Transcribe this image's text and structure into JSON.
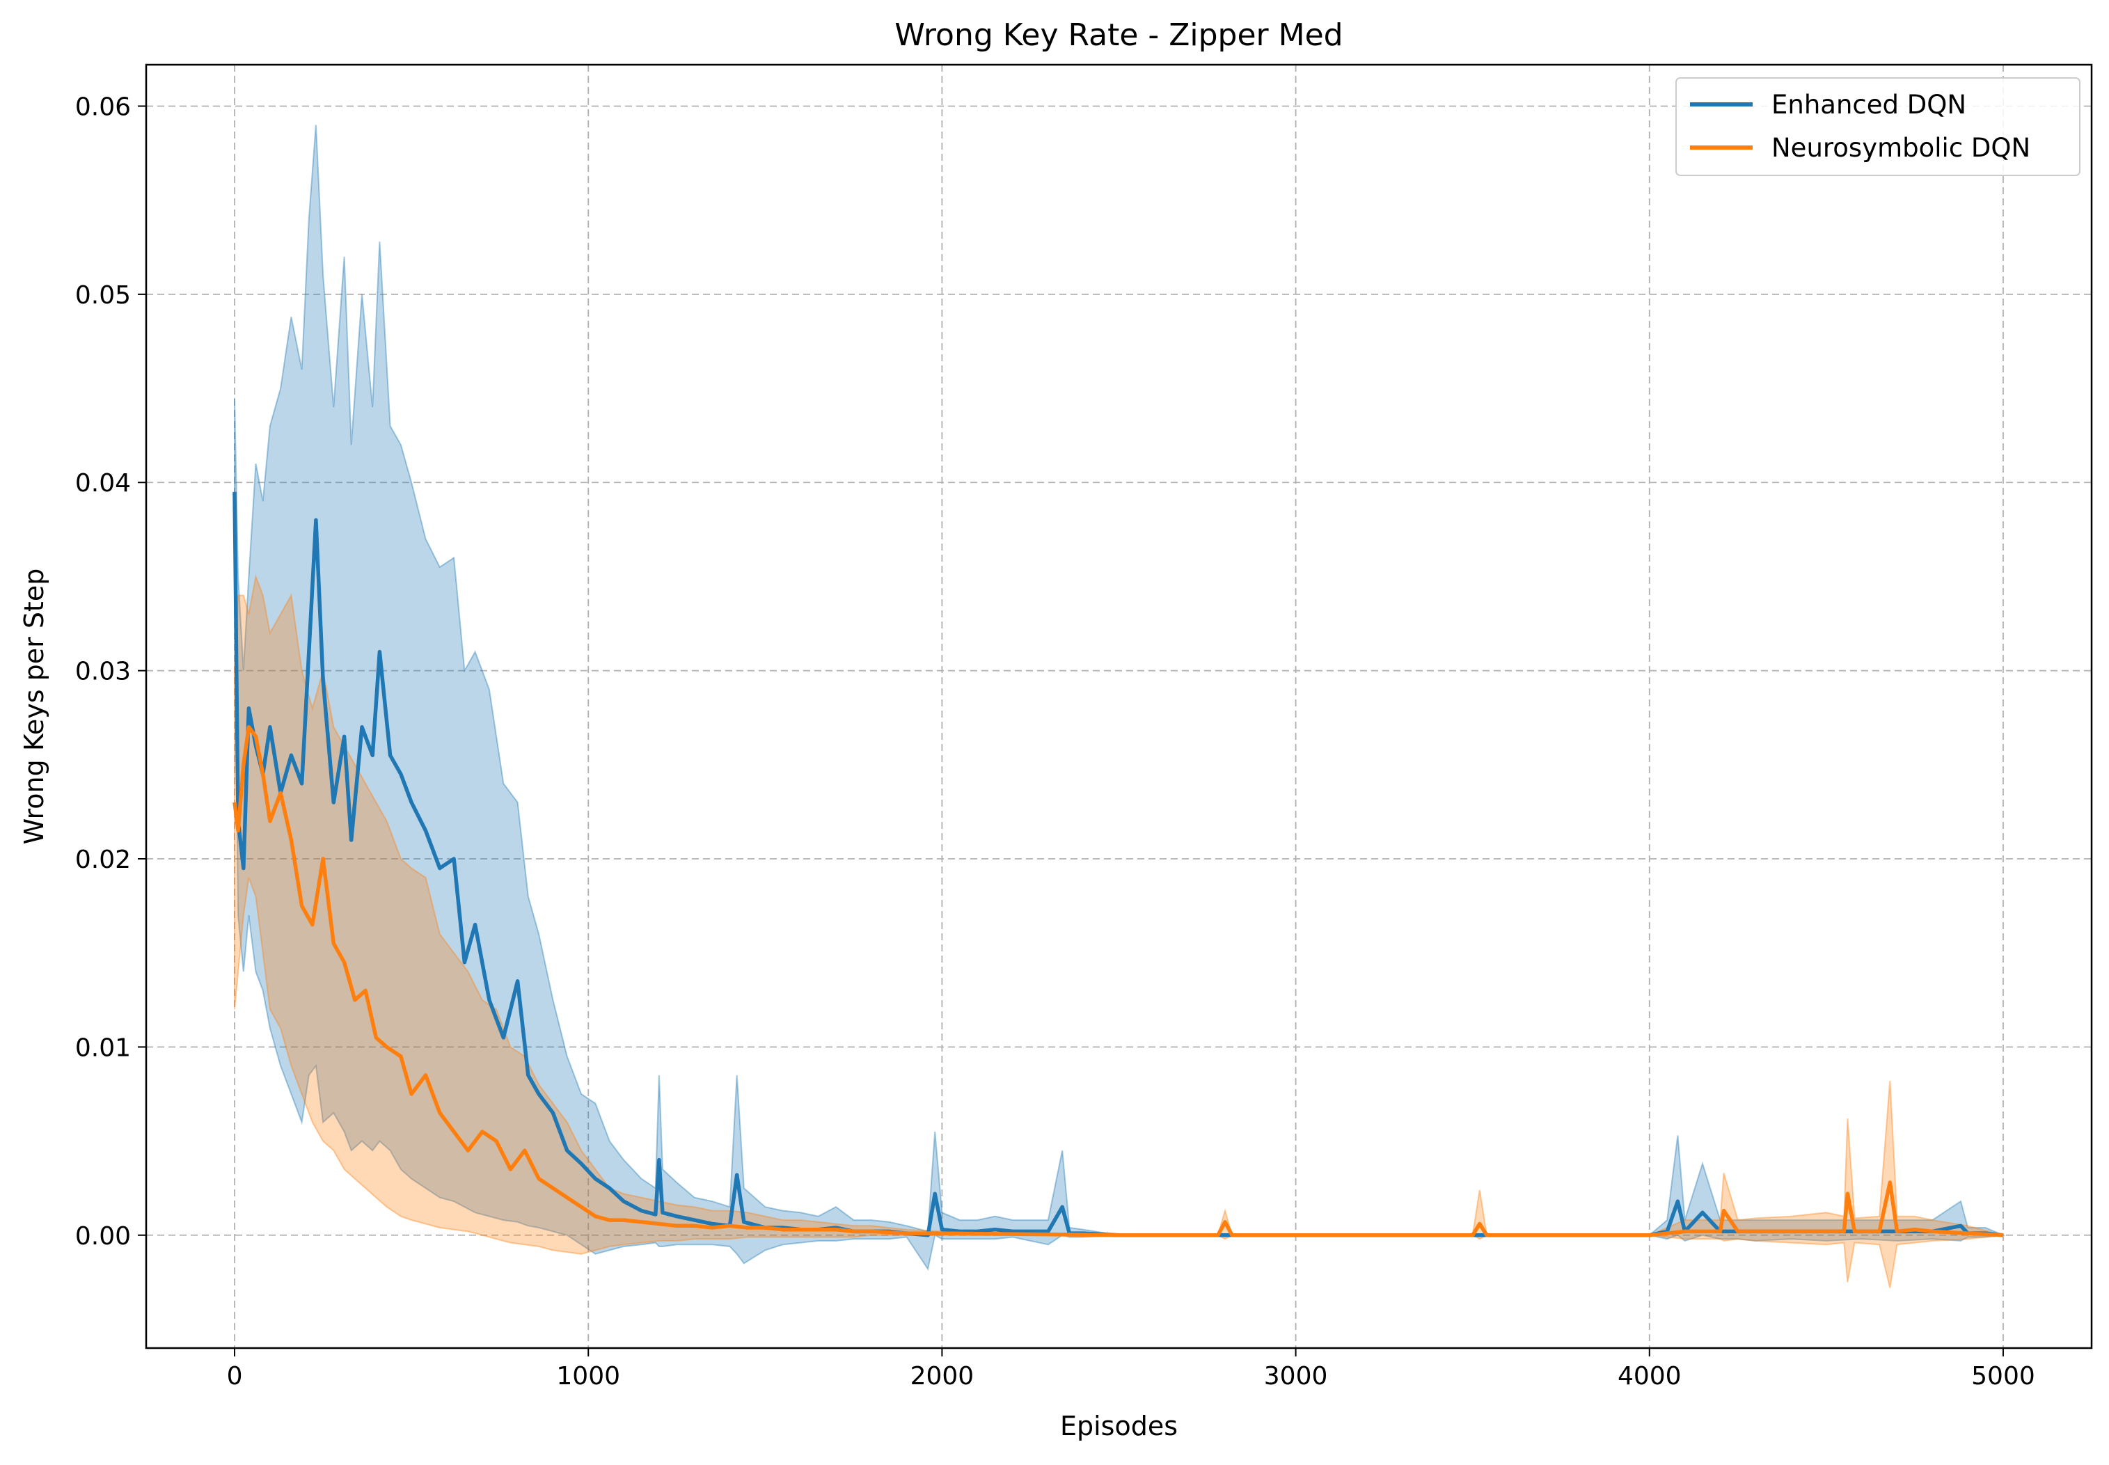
{
  "chart_data": {
    "type": "line",
    "title": "Wrong Key Rate - Zipper Med",
    "xlabel": "Episodes",
    "ylabel": "Wrong Keys per Step",
    "xlim": [
      -250,
      5250
    ],
    "ylim": [
      -0.006,
      0.0622
    ],
    "xticks": [
      0,
      1000,
      2000,
      3000,
      4000,
      5000
    ],
    "xtick_labels": [
      "0",
      "1000",
      "2000",
      "3000",
      "4000",
      "5000"
    ],
    "yticks": [
      0.0,
      0.01,
      0.02,
      0.03,
      0.04,
      0.05,
      0.06
    ],
    "ytick_labels": [
      "0.00",
      "0.01",
      "0.02",
      "0.03",
      "0.04",
      "0.05",
      "0.06"
    ],
    "grid": true,
    "legend_position": "top-right",
    "series": [
      {
        "name": "Enhanced DQN",
        "color": "#1f77b4",
        "x": [
          0,
          10,
          25,
          40,
          60,
          80,
          100,
          130,
          160,
          190,
          210,
          230,
          250,
          280,
          310,
          330,
          360,
          390,
          410,
          440,
          470,
          500,
          540,
          580,
          620,
          650,
          680,
          720,
          760,
          800,
          830,
          860,
          900,
          940,
          980,
          1020,
          1060,
          1100,
          1150,
          1190,
          1200,
          1210,
          1250,
          1300,
          1350,
          1400,
          1420,
          1440,
          1500,
          1550,
          1600,
          1650,
          1700,
          1750,
          1800,
          1850,
          1900,
          1960,
          1980,
          2000,
          2050,
          2100,
          2150,
          2200,
          2300,
          2340,
          2360,
          2400,
          2500,
          3000,
          3500,
          4000,
          4050,
          4080,
          4100,
          4150,
          4200,
          4250,
          4300,
          4400,
          4500,
          4600,
          4700,
          4800,
          4880,
          4900,
          4950,
          5000
        ],
        "mean": [
          0.0395,
          0.022,
          0.0195,
          0.028,
          0.026,
          0.0245,
          0.027,
          0.0235,
          0.0255,
          0.024,
          0.031,
          0.038,
          0.0295,
          0.023,
          0.0265,
          0.021,
          0.027,
          0.0255,
          0.031,
          0.0255,
          0.0245,
          0.023,
          0.0215,
          0.0195,
          0.02,
          0.0145,
          0.0165,
          0.0125,
          0.0105,
          0.0135,
          0.0085,
          0.0075,
          0.0065,
          0.0045,
          0.0038,
          0.003,
          0.0025,
          0.0018,
          0.0013,
          0.0011,
          0.004,
          0.0012,
          0.001,
          0.0008,
          0.0006,
          0.0005,
          0.0032,
          0.0007,
          0.0004,
          0.0004,
          0.0003,
          0.0003,
          0.0004,
          0.0002,
          0.0002,
          0.0002,
          0.0001,
          0.0,
          0.0022,
          0.0003,
          0.0002,
          0.0002,
          0.0003,
          0.0002,
          0.0002,
          0.0015,
          0.0001,
          0.0001,
          0.0,
          0.0,
          0.0,
          0.0,
          0.0002,
          0.0018,
          0.0002,
          0.0012,
          0.0002,
          0.0002,
          0.0002,
          0.0002,
          0.0002,
          0.0002,
          0.0002,
          0.0002,
          0.0005,
          0.0001,
          0.0001,
          0.0
        ],
        "lower": [
          0.035,
          0.017,
          0.014,
          0.017,
          0.014,
          0.013,
          0.011,
          0.009,
          0.0075,
          0.006,
          0.0085,
          0.009,
          0.006,
          0.0065,
          0.0055,
          0.0045,
          0.005,
          0.0045,
          0.005,
          0.0045,
          0.0035,
          0.003,
          0.0025,
          0.002,
          0.0018,
          0.0015,
          0.0012,
          0.001,
          0.0008,
          0.0007,
          0.0005,
          0.0004,
          0.0002,
          0.0,
          -0.0005,
          -0.001,
          -0.0008,
          -0.0006,
          -0.0005,
          -0.0004,
          -0.0006,
          -0.0006,
          -0.0005,
          -0.0005,
          -0.0005,
          -0.0006,
          -0.001,
          -0.0015,
          -0.0008,
          -0.0005,
          -0.0004,
          -0.0003,
          -0.0003,
          -0.0002,
          -0.0002,
          -0.0002,
          -0.0001,
          -0.0018,
          0.0,
          -0.0002,
          -0.0002,
          -0.0002,
          -0.0002,
          -0.0001,
          -0.0005,
          0.0,
          -0.0001,
          -0.0001,
          0.0,
          0.0,
          0.0,
          0.0,
          -0.0002,
          0.0,
          -0.0003,
          0.0,
          -0.0002,
          -0.0002,
          -0.0003,
          -0.0002,
          -0.0003,
          -0.0002,
          -0.0003,
          -0.0002,
          -0.0003,
          -0.0001,
          -0.0001,
          0.0
        ],
        "upper": [
          0.0445,
          0.035,
          0.03,
          0.035,
          0.041,
          0.039,
          0.043,
          0.045,
          0.0488,
          0.046,
          0.054,
          0.059,
          0.051,
          0.044,
          0.052,
          0.042,
          0.05,
          0.044,
          0.0528,
          0.043,
          0.042,
          0.04,
          0.037,
          0.0355,
          0.036,
          0.03,
          0.031,
          0.029,
          0.024,
          0.023,
          0.018,
          0.016,
          0.0125,
          0.0095,
          0.0075,
          0.007,
          0.005,
          0.004,
          0.003,
          0.0025,
          0.0085,
          0.0035,
          0.0028,
          0.002,
          0.0018,
          0.0015,
          0.0085,
          0.0025,
          0.0015,
          0.0013,
          0.0012,
          0.001,
          0.0015,
          0.0008,
          0.0008,
          0.0007,
          0.0005,
          0.0002,
          0.0055,
          0.0012,
          0.0008,
          0.0008,
          0.001,
          0.0008,
          0.0008,
          0.0045,
          0.0004,
          0.0003,
          0.0,
          0.0,
          0.0,
          0.0,
          0.0008,
          0.0053,
          0.0008,
          0.0038,
          0.0008,
          0.0008,
          0.0008,
          0.0008,
          0.0008,
          0.0008,
          0.0008,
          0.0008,
          0.0018,
          0.0004,
          0.0004,
          0.0
        ]
      },
      {
        "name": "Neurosymbolic DQN",
        "color": "#ff7f0e",
        "x": [
          0,
          10,
          25,
          40,
          60,
          80,
          100,
          130,
          160,
          190,
          220,
          250,
          280,
          310,
          340,
          370,
          400,
          430,
          470,
          500,
          540,
          580,
          620,
          660,
          700,
          740,
          780,
          820,
          860,
          900,
          940,
          980,
          1020,
          1060,
          1100,
          1150,
          1200,
          1250,
          1300,
          1350,
          1400,
          1450,
          1500,
          1550,
          1600,
          1650,
          1700,
          1750,
          1800,
          1900,
          2000,
          2500,
          2780,
          2800,
          2820,
          3000,
          3500,
          3520,
          3540,
          4000,
          4100,
          4150,
          4200,
          4210,
          4250,
          4300,
          4400,
          4500,
          4550,
          4560,
          4580,
          4650,
          4680,
          4700,
          4750,
          4800,
          4900,
          5000
        ],
        "mean": [
          0.023,
          0.0215,
          0.025,
          0.027,
          0.0265,
          0.0245,
          0.022,
          0.0235,
          0.021,
          0.0175,
          0.0165,
          0.02,
          0.0155,
          0.0145,
          0.0125,
          0.013,
          0.0105,
          0.01,
          0.0095,
          0.0075,
          0.0085,
          0.0065,
          0.0055,
          0.0045,
          0.0055,
          0.005,
          0.0035,
          0.0045,
          0.003,
          0.0025,
          0.002,
          0.0015,
          0.001,
          0.0008,
          0.0008,
          0.0007,
          0.0006,
          0.0005,
          0.0005,
          0.0004,
          0.0005,
          0.0004,
          0.0004,
          0.0003,
          0.0003,
          0.0003,
          0.0003,
          0.0002,
          0.0002,
          0.0001,
          0.0001,
          0.0,
          0.0,
          0.0007,
          0.0,
          0.0,
          0.0,
          0.0006,
          0.0,
          0.0,
          0.0002,
          0.0002,
          0.0002,
          0.0013,
          0.0002,
          0.0002,
          0.0002,
          0.0002,
          0.0002,
          0.0022,
          0.0002,
          0.0002,
          0.0028,
          0.0002,
          0.0003,
          0.0002,
          0.0001,
          0.0
        ],
        "lower": [
          0.012,
          0.014,
          0.017,
          0.019,
          0.018,
          0.015,
          0.012,
          0.011,
          0.009,
          0.0075,
          0.006,
          0.005,
          0.0045,
          0.0035,
          0.003,
          0.0025,
          0.002,
          0.0015,
          0.001,
          0.0008,
          0.0006,
          0.0004,
          0.0003,
          0.0002,
          0.0,
          -0.0002,
          -0.0004,
          -0.0005,
          -0.0006,
          -0.0008,
          -0.0009,
          -0.001,
          -0.0008,
          -0.0006,
          -0.0005,
          -0.0004,
          -0.0003,
          -0.0003,
          -0.0002,
          -0.0002,
          -0.0002,
          -0.0001,
          -0.0001,
          -0.0001,
          -0.0001,
          -0.0001,
          -0.0001,
          -0.0001,
          0.0,
          0.0,
          0.0,
          0.0,
          0.0,
          -0.0002,
          0.0,
          0.0,
          0.0,
          -0.0002,
          0.0,
          0.0,
          -0.0002,
          -0.0002,
          -0.0002,
          -0.0003,
          -0.0002,
          -0.0003,
          -0.0004,
          -0.0005,
          -0.0004,
          -0.0025,
          -0.0004,
          -0.0005,
          -0.0028,
          -0.0005,
          -0.0004,
          -0.0003,
          -0.0002,
          0.0
        ],
        "upper": [
          0.03,
          0.034,
          0.034,
          0.033,
          0.035,
          0.034,
          0.032,
          0.033,
          0.034,
          0.03,
          0.028,
          0.03,
          0.027,
          0.026,
          0.025,
          0.024,
          0.023,
          0.022,
          0.02,
          0.0195,
          0.019,
          0.016,
          0.015,
          0.014,
          0.0125,
          0.012,
          0.01,
          0.0095,
          0.008,
          0.007,
          0.006,
          0.0045,
          0.0035,
          0.0025,
          0.0022,
          0.002,
          0.0018,
          0.0016,
          0.0015,
          0.0013,
          0.0013,
          0.0012,
          0.001,
          0.0008,
          0.0008,
          0.0007,
          0.0006,
          0.0005,
          0.0005,
          0.0003,
          0.0002,
          0.0,
          0.0,
          0.0013,
          0.0,
          0.0,
          0.0,
          0.0024,
          0.0,
          0.0,
          0.0008,
          0.0008,
          0.0008,
          0.0033,
          0.0008,
          0.0009,
          0.001,
          0.0012,
          0.001,
          0.0062,
          0.0009,
          0.001,
          0.0082,
          0.001,
          0.001,
          0.0008,
          0.0005,
          0.0
        ]
      }
    ]
  }
}
